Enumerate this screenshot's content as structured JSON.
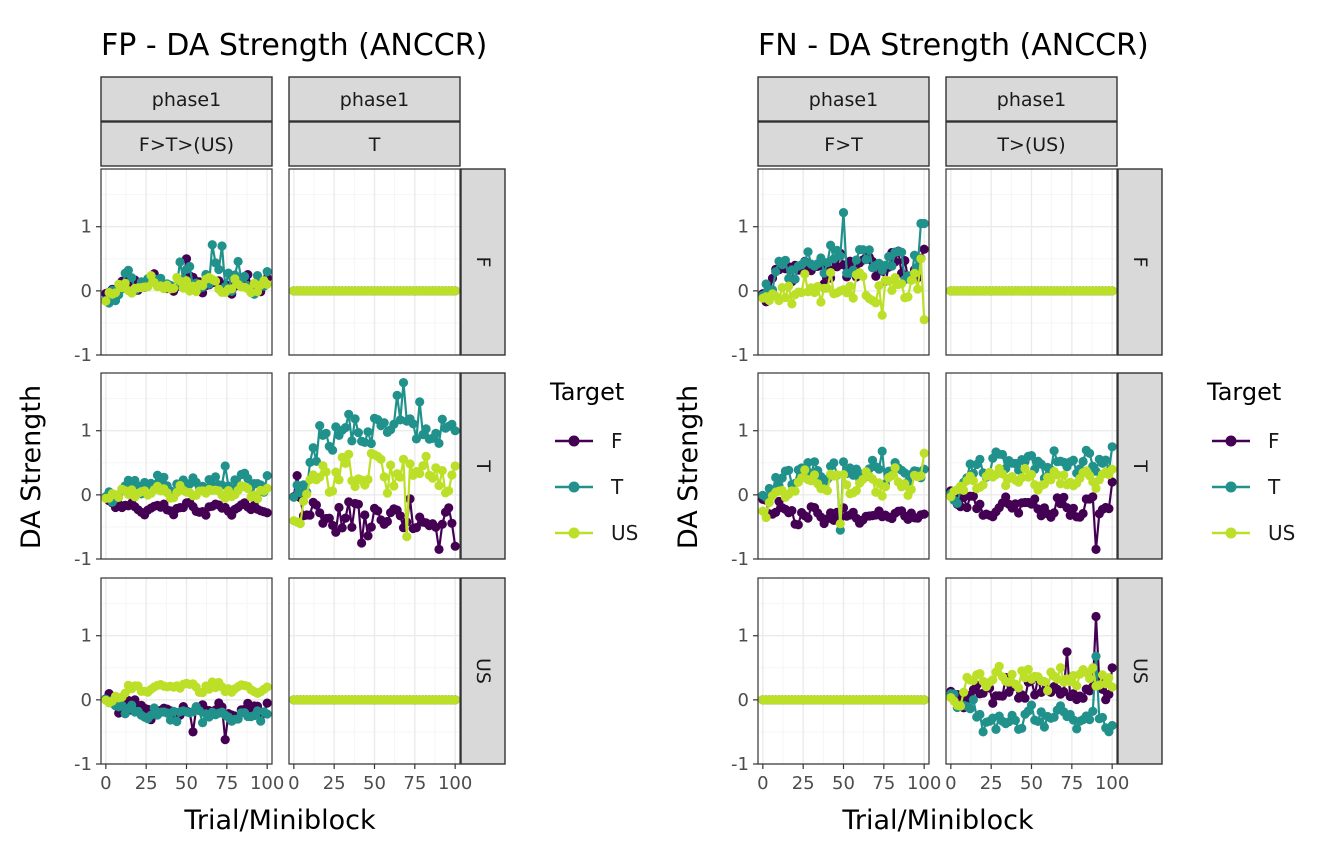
{
  "colors": {
    "F": "#440154",
    "T": "#21918C",
    "US": "#BCDF27",
    "strip_fill": "#D9D9D9",
    "grid_major": "#EBEBEB",
    "grid_minor": "#F5F5F5"
  },
  "chart_data": [
    {
      "type": "line",
      "title": "FP - DA Strength (ANCCR)",
      "xlabel": "Trial/Miniblock",
      "ylabel": "DA Strength",
      "legend_title": "Target",
      "legend_position": "right",
      "xlim": [
        -3,
        103
      ],
      "ylim": [
        -1,
        1.9
      ],
      "x_ticks": [
        0,
        25,
        50,
        75,
        100
      ],
      "y_ticks": [
        -1,
        0,
        1
      ],
      "grid": true,
      "series_names": [
        "F",
        "T",
        "US"
      ],
      "col_strips": [
        [
          "phase1",
          "F>T>(US)"
        ],
        [
          "phase1",
          "T"
        ]
      ],
      "row_strips": [
        "F",
        "T",
        "US"
      ],
      "panels": [
        {
          "row": 0,
          "col": 0,
          "series": {
            "F": {
              "base": 0.12,
              "amp": 0.08,
              "jitter": 0.1,
              "start": 0.0,
              "end": 0.2,
              "spikes": [
                [
                  50,
                  0.5
                ]
              ]
            },
            "T": {
              "base": 0.2,
              "amp": 0.1,
              "jitter": 0.18,
              "start": 0.0,
              "end": 0.3,
              "spikes": [
                [
                  66,
                  0.72
                ],
                [
                  72,
                  0.7
                ]
              ]
            },
            "US": {
              "base": 0.1,
              "amp": 0.06,
              "jitter": 0.1,
              "start": -0.05,
              "end": 0.1,
              "spikes": []
            }
          }
        },
        {
          "row": 0,
          "col": 1,
          "series": {
            "F": {
              "const": 0
            },
            "T": {
              "const": 0
            },
            "US": {
              "const": 0
            }
          }
        },
        {
          "row": 1,
          "col": 0,
          "series": {
            "F": {
              "base": -0.22,
              "amp": 0.05,
              "jitter": 0.06,
              "start": -0.05,
              "end": -0.28,
              "spikes": []
            },
            "T": {
              "base": 0.18,
              "amp": 0.08,
              "jitter": 0.1,
              "start": 0.0,
              "end": 0.3,
              "spikes": [
                [
                  75,
                  0.45
                ]
              ]
            },
            "US": {
              "base": 0.05,
              "amp": 0.05,
              "jitter": 0.07,
              "start": 0.0,
              "end": 0.1,
              "spikes": []
            }
          }
        },
        {
          "row": 1,
          "col": 1,
          "series": {
            "F": {
              "base": -0.35,
              "amp": 0.1,
              "jitter": 0.28,
              "start": 0.0,
              "end": -0.4,
              "spikes": [
                [
                  42,
                  -0.75
                ],
                [
                  90,
                  -0.85
                ],
                [
                  100,
                  -0.8
                ]
              ]
            },
            "T": {
              "base": 0.95,
              "amp": 0.12,
              "jitter": 0.25,
              "start": 0.0,
              "end": 1.0,
              "spikes": [
                [
                  65,
                  1.55
                ],
                [
                  68,
                  1.75
                ],
                [
                  78,
                  1.45
                ]
              ]
            },
            "US": {
              "base": 0.35,
              "amp": 0.12,
              "jitter": 0.22,
              "start": -0.3,
              "end": 0.45,
              "spikes": [
                [
                  70,
                  -0.65
                ]
              ]
            }
          }
        },
        {
          "row": 2,
          "col": 0,
          "series": {
            "F": {
              "base": -0.15,
              "amp": 0.06,
              "jitter": 0.1,
              "start": 0.0,
              "end": -0.05,
              "spikes": [
                [
                  75,
                  -0.62
                ],
                [
                  55,
                  -0.5
                ]
              ]
            },
            "T": {
              "base": -0.22,
              "amp": 0.06,
              "jitter": 0.1,
              "start": 0.0,
              "end": -0.22,
              "spikes": []
            },
            "US": {
              "base": 0.2,
              "amp": 0.05,
              "jitter": 0.06,
              "start": 0.0,
              "end": 0.2,
              "spikes": []
            }
          }
        },
        {
          "row": 2,
          "col": 1,
          "series": {
            "F": {
              "const": 0
            },
            "T": {
              "const": 0
            },
            "US": {
              "const": 0
            }
          }
        }
      ]
    },
    {
      "type": "line",
      "title": "FN - DA Strength (ANCCR)",
      "xlabel": "Trial/Miniblock",
      "ylabel": "DA Strength",
      "legend_title": "Target",
      "legend_position": "right",
      "xlim": [
        -3,
        103
      ],
      "ylim": [
        -1,
        1.9
      ],
      "x_ticks": [
        0,
        25,
        50,
        75,
        100
      ],
      "y_ticks": [
        -1,
        0,
        1
      ],
      "grid": true,
      "series_names": [
        "F",
        "T",
        "US"
      ],
      "col_strips": [
        [
          "phase1",
          "F>T"
        ],
        [
          "phase1",
          "T>(US)"
        ]
      ],
      "row_strips": [
        "F",
        "T",
        "US"
      ],
      "panels": [
        {
          "row": 0,
          "col": 0,
          "series": {
            "F": {
              "base": 0.38,
              "amp": 0.12,
              "jitter": 0.18,
              "start": 0.0,
              "end": 0.15,
              "spikes": [
                [
                  100,
                  0.65
                ]
              ]
            },
            "T": {
              "base": 0.45,
              "amp": 0.12,
              "jitter": 0.2,
              "start": 0.0,
              "end": 1.05,
              "spikes": [
                [
                  50,
                  1.22
                ],
                [
                  99,
                  1.05
                ]
              ]
            },
            "US": {
              "base": 0.05,
              "amp": 0.08,
              "jitter": 0.18,
              "start": -0.1,
              "end": -0.45,
              "spikes": [
                [
                  75,
                  -0.38
                ],
                [
                  99,
                  0.5
                ]
              ]
            }
          }
        },
        {
          "row": 0,
          "col": 1,
          "series": {
            "F": {
              "const": 0
            },
            "T": {
              "const": 0
            },
            "US": {
              "const": 0
            }
          }
        },
        {
          "row": 1,
          "col": 0,
          "series": {
            "F": {
              "base": -0.32,
              "amp": 0.06,
              "jitter": 0.1,
              "start": -0.1,
              "end": -0.3,
              "spikes": []
            },
            "T": {
              "base": 0.35,
              "amp": 0.08,
              "jitter": 0.15,
              "start": 0.0,
              "end": 0.4,
              "spikes": [
                [
                  48,
                  -0.55
                ],
                [
                  75,
                  0.68
                ]
              ]
            },
            "US": {
              "base": 0.18,
              "amp": 0.1,
              "jitter": 0.15,
              "start": -0.2,
              "end": 0.65,
              "spikes": [
                [
                  48,
                  -0.45
                ]
              ]
            }
          }
        },
        {
          "row": 1,
          "col": 1,
          "series": {
            "F": {
              "base": -0.2,
              "amp": 0.06,
              "jitter": 0.12,
              "start": 0.0,
              "end": 0.2,
              "spikes": [
                [
                  90,
                  -0.85
                ]
              ]
            },
            "T": {
              "base": 0.5,
              "amp": 0.1,
              "jitter": 0.15,
              "start": 0.0,
              "end": 0.75,
              "spikes": []
            },
            "US": {
              "base": 0.25,
              "amp": 0.08,
              "jitter": 0.12,
              "start": 0.0,
              "end": 0.4,
              "spikes": []
            }
          }
        },
        {
          "row": 2,
          "col": 0,
          "series": {
            "F": {
              "const": 0
            },
            "T": {
              "const": 0
            },
            "US": {
              "const": 0
            }
          }
        },
        {
          "row": 2,
          "col": 1,
          "series": {
            "F": {
              "base": 0.15,
              "amp": 0.08,
              "jitter": 0.15,
              "start": 0.0,
              "end": 0.5,
              "spikes": [
                [
                  72,
                  0.75
                ],
                [
                  90,
                  1.3
                ]
              ]
            },
            "T": {
              "base": -0.3,
              "amp": 0.08,
              "jitter": 0.15,
              "start": 0.0,
              "end": -0.4,
              "spikes": [
                [
                  90,
                  0.68
                ],
                [
                  20,
                  -0.5
                ]
              ]
            },
            "US": {
              "base": 0.35,
              "amp": 0.1,
              "jitter": 0.14,
              "start": 0.0,
              "end": 0.2,
              "spikes": []
            }
          }
        }
      ]
    }
  ]
}
